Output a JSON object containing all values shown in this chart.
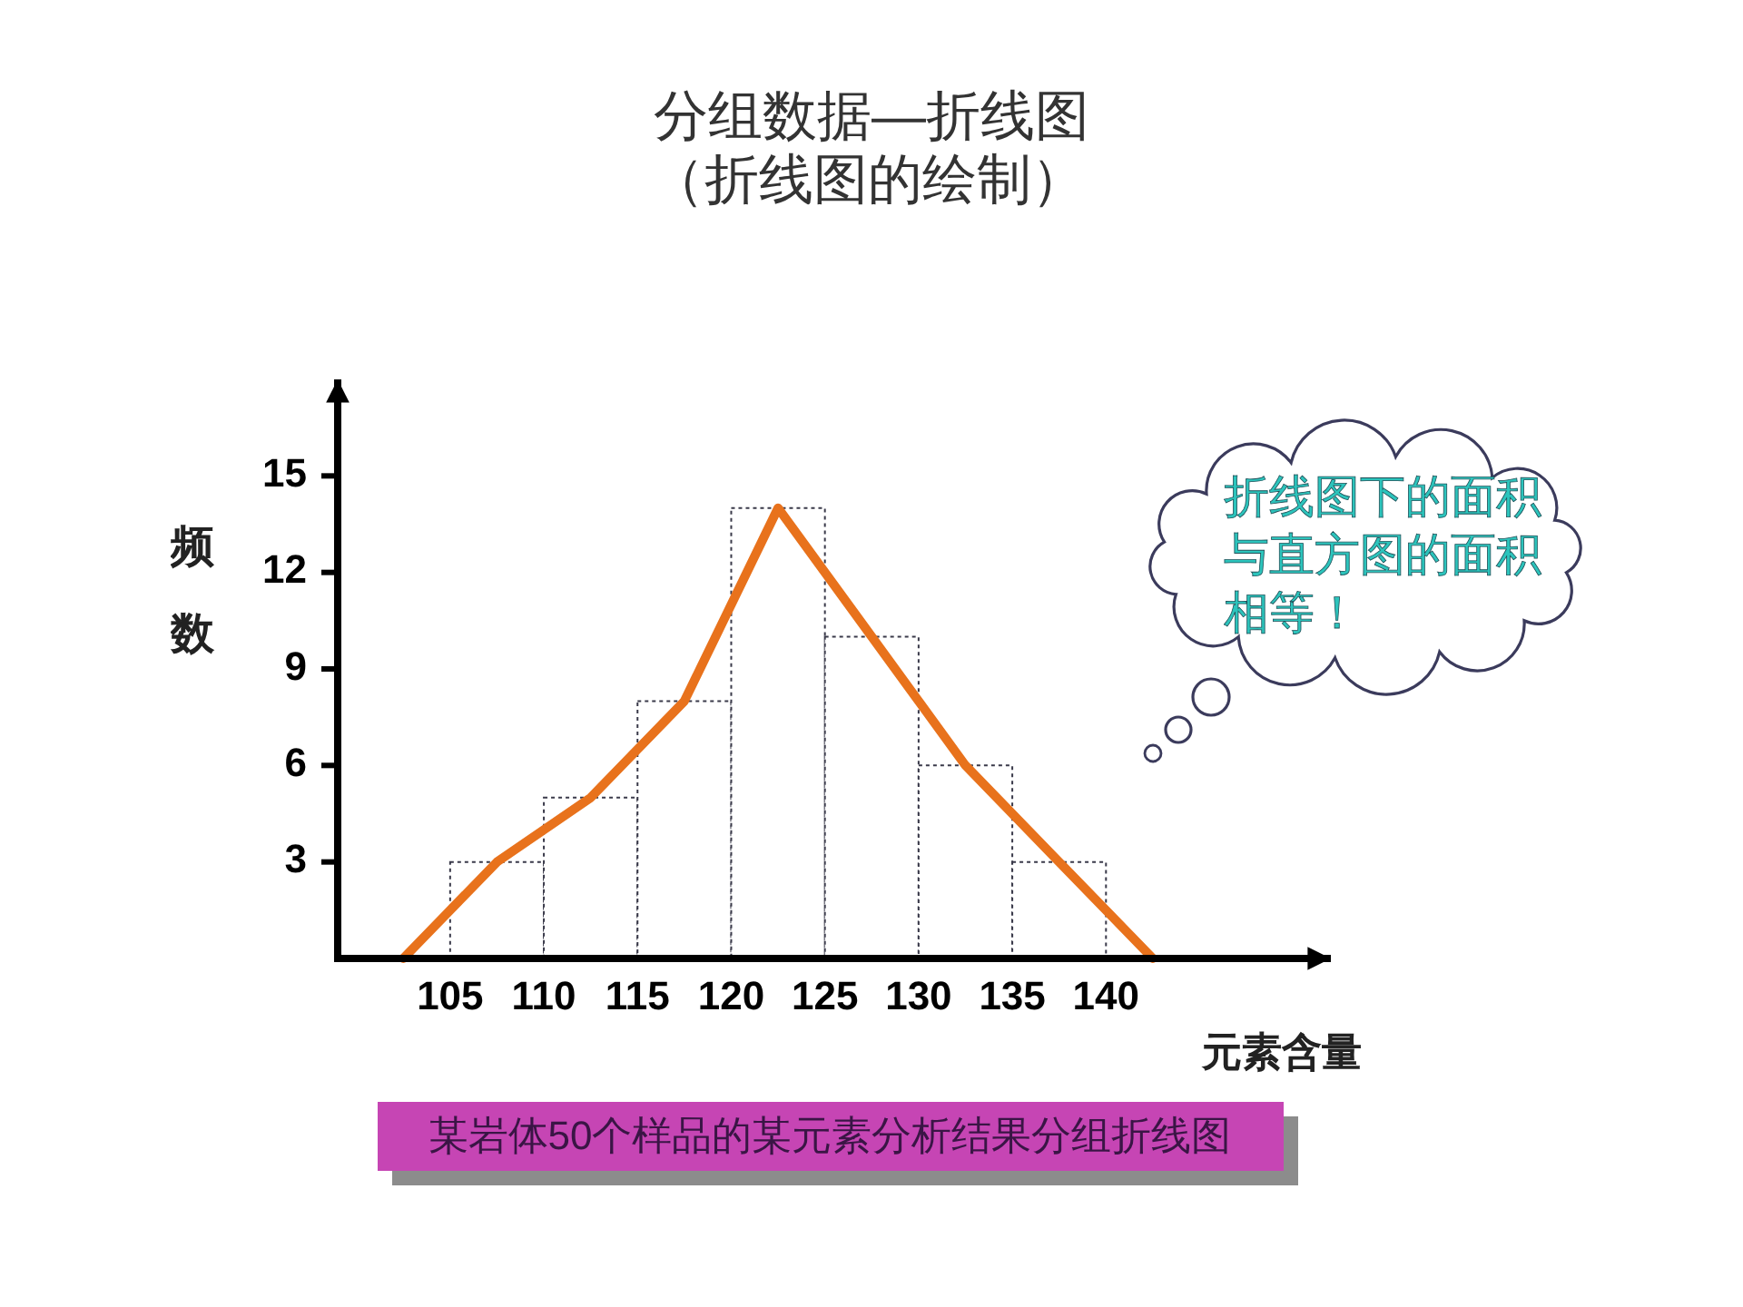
{
  "chart_data": {
    "type": "histogram",
    "title": "分组数据—折线图",
    "subtitle": "（折线图的绘制）",
    "xlabel": "元素含量",
    "ylabel": "频数",
    "bins": [
      105,
      110,
      115,
      120,
      125,
      130,
      135,
      140
    ],
    "values": [
      3,
      5,
      8,
      14,
      10,
      6,
      3
    ],
    "color": "#ffffff",
    "series": [
      {
        "type": "line",
        "x": [
          102.5,
          107.5,
          112.5,
          117.5,
          122.5,
          127.5,
          132.5,
          137.5,
          142.5
        ],
        "values": [
          0,
          3,
          5,
          8,
          14,
          10,
          6,
          3,
          0
        ],
        "color": "#e8721c"
      }
    ],
    "xlim": [
      99,
      152
    ],
    "ylim": [
      0,
      18
    ],
    "xticks": [
      105,
      110,
      115,
      120,
      125,
      130,
      135,
      140
    ],
    "yticks": [
      3,
      6,
      9,
      12,
      15
    ],
    "annotations": [
      "折线图下的面积与直方图的面积相等！",
      "某岩体50个样品的某元素分析结果分组折线图"
    ]
  }
}
